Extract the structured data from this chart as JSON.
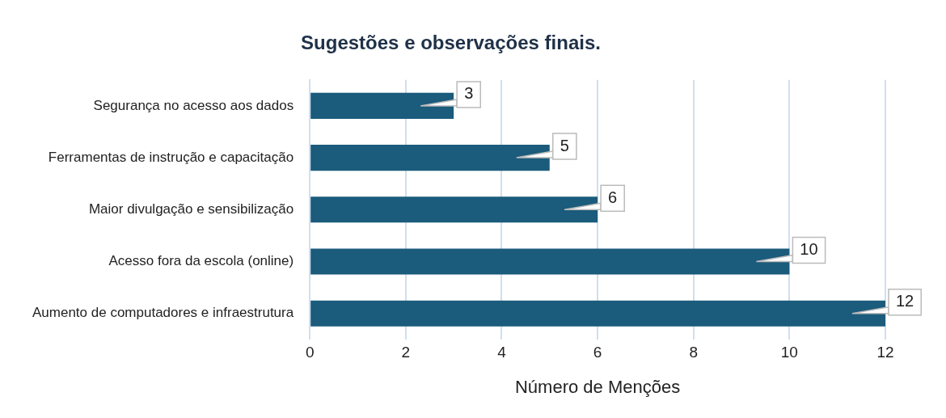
{
  "chart_data": {
    "type": "bar",
    "orientation": "horizontal",
    "title": "Sugestões e observações finais.",
    "xlabel": "Número de Menções",
    "categories": [
      "Segurança no acesso aos dados",
      "Ferramentas de instrução e capacitação",
      "Maior divulgação e sensibilização",
      "Acesso fora da escola (online)",
      "Aumento de computadores e infraestrutura"
    ],
    "values": [
      3,
      5,
      6,
      10,
      12
    ],
    "color": "#1b5b7c",
    "xlim": [
      0,
      12
    ],
    "xticks": [
      0,
      2,
      4,
      6,
      8,
      10,
      12
    ],
    "grid": "x",
    "legend": false,
    "data_labels": true
  }
}
